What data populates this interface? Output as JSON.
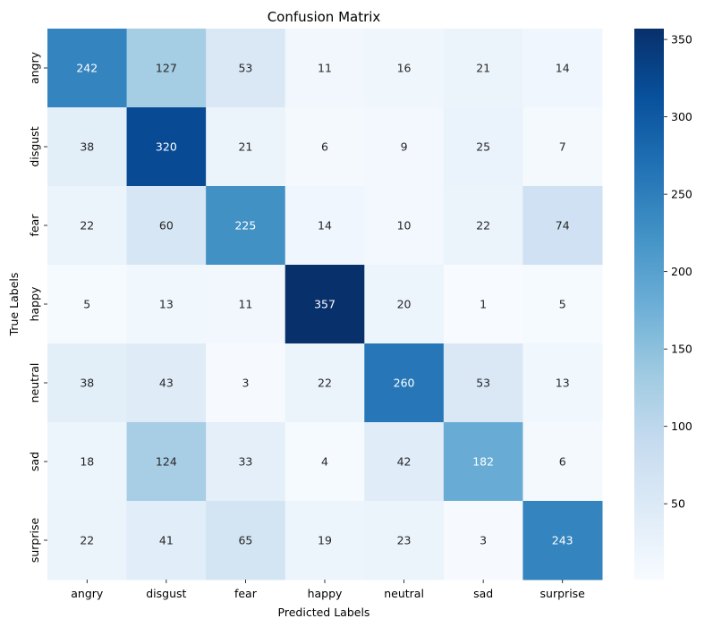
{
  "chart_data": {
    "type": "heatmap",
    "title": "Confusion Matrix",
    "xlabel": "Predicted Labels",
    "ylabel": "True Labels",
    "x_categories": [
      "angry",
      "disgust",
      "fear",
      "happy",
      "neutral",
      "sad",
      "surprise"
    ],
    "y_categories": [
      "angry",
      "disgust",
      "fear",
      "happy",
      "neutral",
      "sad",
      "surprise"
    ],
    "values": [
      [
        242,
        127,
        53,
        11,
        16,
        21,
        14
      ],
      [
        38,
        320,
        21,
        6,
        9,
        25,
        7
      ],
      [
        22,
        60,
        225,
        14,
        10,
        22,
        74
      ],
      [
        5,
        13,
        11,
        357,
        20,
        1,
        5
      ],
      [
        38,
        43,
        3,
        22,
        260,
        53,
        13
      ],
      [
        18,
        124,
        33,
        4,
        42,
        182,
        6
      ],
      [
        22,
        41,
        65,
        19,
        23,
        3,
        243
      ]
    ],
    "colormap": "Blues",
    "vmin": 1,
    "vmax": 357,
    "colorbar_ticks": [
      50,
      100,
      150,
      200,
      250,
      300,
      350
    ],
    "grid": false,
    "colorbar_position": "right"
  }
}
